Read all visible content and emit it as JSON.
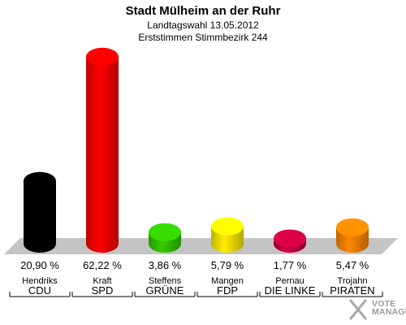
{
  "header": {
    "title": "Stadt Mülheim an der Ruhr",
    "subtitle": "Landtagswahl 13.05.2012",
    "subtitle2": "Erststimmen Stimmbezirk 244"
  },
  "chart_data": {
    "type": "bar",
    "title": "Stadt Mülheim an der Ruhr",
    "subtitle": "Landtagswahl 13.05.2012 — Erststimmen Stimmbezirk 244",
    "categories": [
      "CDU",
      "SPD",
      "GRÜNE",
      "FDP",
      "DIE LINKE",
      "PIRATEN"
    ],
    "candidates": [
      "Hendriks",
      "Kraft",
      "Steffens",
      "Mangen",
      "Pernau",
      "Trojahn"
    ],
    "values": [
      20.9,
      62.22,
      3.86,
      5.79,
      1.77,
      5.47
    ],
    "value_labels": [
      "20,90 %",
      "62,22 %",
      "3,86 %",
      "5,79 %",
      "1,77 %",
      "5,47 %"
    ],
    "colors": [
      "#000000",
      "#ff0000",
      "#33cc00",
      "#ffee00",
      "#cc0044",
      "#ff8800"
    ],
    "unit": "%",
    "ylim": [
      0,
      65
    ],
    "grid": false,
    "legend": "none"
  },
  "branding": {
    "line1": "VOTE",
    "line2": "MANAGER"
  }
}
